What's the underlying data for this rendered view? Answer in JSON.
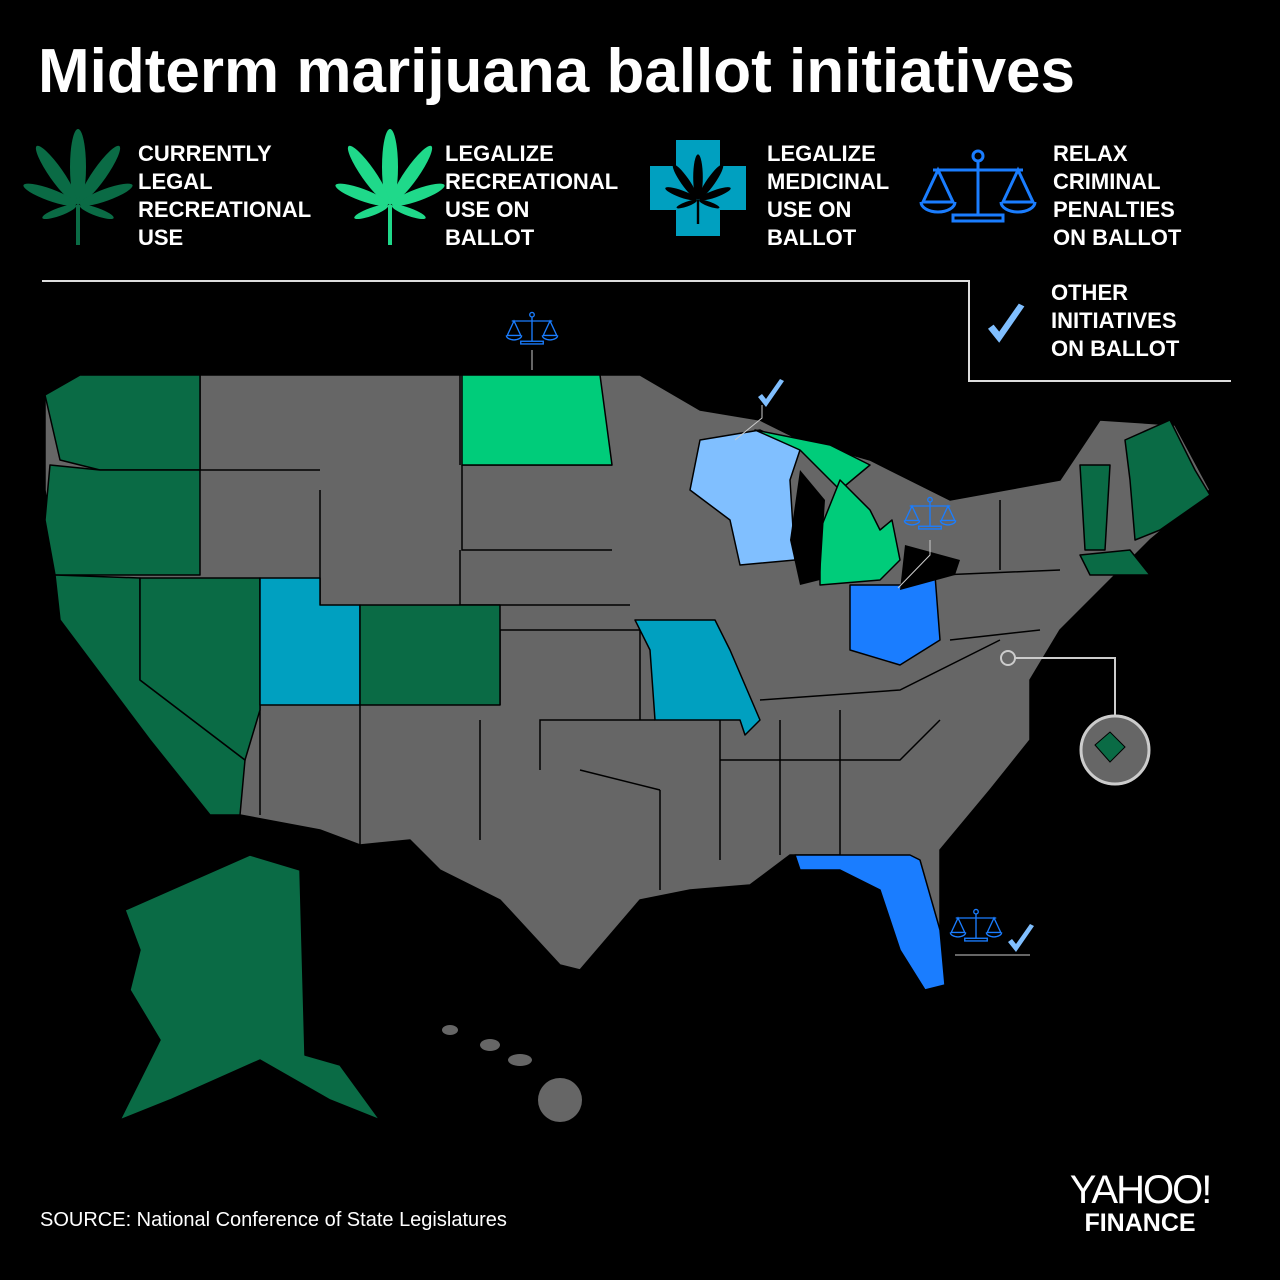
{
  "title": "Midterm marijuana ballot initiatives",
  "legend": [
    {
      "lines": [
        "CURRENTLY",
        "LEGAL",
        "RECREATIONAL",
        "USE"
      ]
    },
    {
      "lines": [
        "LEGALIZE",
        "RECREATIONAL",
        "USE ON",
        "BALLOT"
      ]
    },
    {
      "lines": [
        "LEGALIZE",
        "MEDICINAL",
        "USE ON",
        "BALLOT"
      ]
    },
    {
      "lines": [
        "RELAX",
        "CRIMINAL",
        "PENALTIES",
        "ON BALLOT"
      ]
    },
    {
      "lines": [
        "OTHER",
        "INITIATIVES",
        "ON BALLOT"
      ]
    }
  ],
  "source": "SOURCE: National Conference of State Legislatures",
  "logo": {
    "name": "YAHOO!",
    "sub": "FINANCE"
  }
}
